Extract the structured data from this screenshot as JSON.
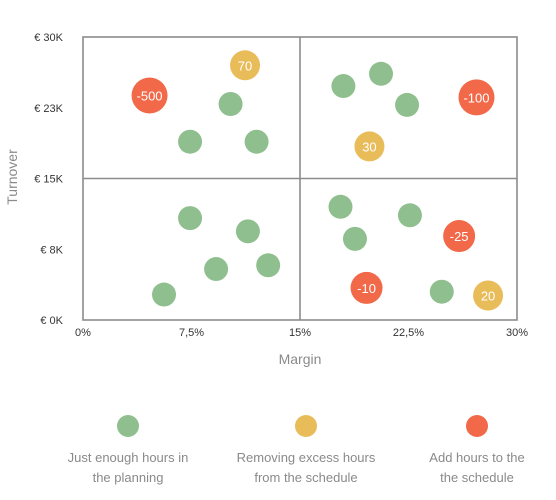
{
  "chart_data": {
    "type": "scatter",
    "xlabel": "Margin",
    "ylabel": "Turnover",
    "xlim": [
      0,
      30
    ],
    "ylim": [
      0,
      30000
    ],
    "x_ticks": [
      {
        "value": 0,
        "label": "0%"
      },
      {
        "value": 7.5,
        "label": "7,5%"
      },
      {
        "value": 15,
        "label": "15%"
      },
      {
        "value": 22.5,
        "label": "22,5%"
      },
      {
        "value": 30,
        "label": "30%"
      }
    ],
    "y_ticks": [
      {
        "value": 0,
        "label": "€ 0K"
      },
      {
        "value": 7500,
        "label": "€ 8K"
      },
      {
        "value": 15000,
        "label": "€ 15K"
      },
      {
        "value": 22500,
        "label": "€ 23K"
      },
      {
        "value": 30000,
        "label": "€ 30K"
      }
    ],
    "quadrant_dividers": {
      "x": 15,
      "y": 15000
    },
    "grid": false,
    "legend_position": "bottom",
    "colors": {
      "green": "#8fbf8f",
      "yellow": "#e9bc5a",
      "red": "#f2694a"
    },
    "series": [
      {
        "name": "Just enough hours in the planning",
        "color": "#8fbf8f",
        "points": [
          {
            "x": 7.4,
            "y": 18900
          },
          {
            "x": 10.2,
            "y": 22900
          },
          {
            "x": 12.0,
            "y": 18900
          },
          {
            "x": 18.0,
            "y": 24800
          },
          {
            "x": 20.6,
            "y": 26100
          },
          {
            "x": 22.4,
            "y": 22800
          },
          {
            "x": 7.4,
            "y": 10800
          },
          {
            "x": 11.4,
            "y": 9400
          },
          {
            "x": 9.2,
            "y": 5400
          },
          {
            "x": 12.8,
            "y": 5800
          },
          {
            "x": 5.6,
            "y": 2700
          },
          {
            "x": 17.8,
            "y": 12000
          },
          {
            "x": 18.8,
            "y": 8600
          },
          {
            "x": 22.6,
            "y": 11100
          },
          {
            "x": 24.8,
            "y": 3000
          }
        ]
      },
      {
        "name": "Removing excess hours from the schedule",
        "color": "#e9bc5a",
        "points": [
          {
            "x": 11.2,
            "y": 27000,
            "label": "70"
          },
          {
            "x": 19.8,
            "y": 18400,
            "label": "30"
          },
          {
            "x": 28.0,
            "y": 2600,
            "label": "20"
          }
        ]
      },
      {
        "name": "Add hours to the schedule",
        "color": "#f2694a",
        "points": [
          {
            "x": 4.6,
            "y": 23800,
            "label": "-500"
          },
          {
            "x": 27.2,
            "y": 23600,
            "label": "-100"
          },
          {
            "x": 26.0,
            "y": 8900,
            "label": "-25"
          },
          {
            "x": 19.6,
            "y": 3400,
            "label": "-10"
          }
        ]
      }
    ],
    "legend": [
      {
        "line1": "Just enough hours in",
        "line2": "the planning",
        "color": "#8fbf8f"
      },
      {
        "line1": "Removing excess hours",
        "line2": "from the schedule",
        "color": "#e9bc5a"
      },
      {
        "line1": "Add hours to the",
        "line2": "the schedule",
        "color": "#f2694a"
      }
    ]
  }
}
